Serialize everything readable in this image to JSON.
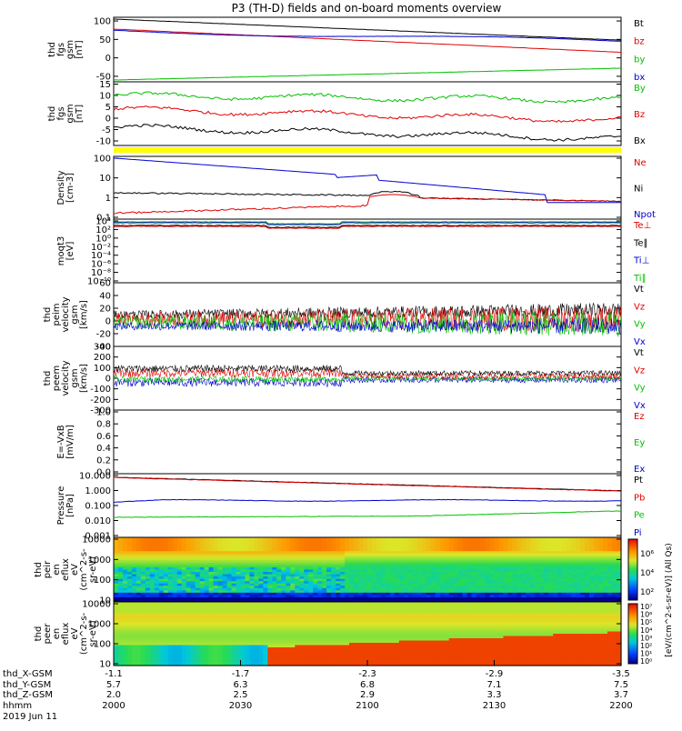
{
  "title": "P3 (TH-D) fields and on-board moments overview",
  "colors": {
    "black": "#000000",
    "red": "#e00000",
    "green": "#00c000",
    "blue": "#0000d0",
    "yellow": "#ffff00"
  },
  "chart_data": [
    {
      "type": "line",
      "ylabel": [
        "thd",
        "fgs",
        "gsm",
        "[nT]"
      ],
      "yticks": [
        100,
        50,
        0,
        -50
      ],
      "ylim": [
        -65,
        110
      ],
      "series": [
        {
          "name": "Bt",
          "color": "black",
          "start": 105,
          "end": 48
        },
        {
          "name": "bz",
          "color": "red",
          "start": 78,
          "end": 15
        },
        {
          "name": "by",
          "color": "green",
          "start": -60,
          "end": -28
        },
        {
          "name": "bx",
          "color": "blue",
          "start": 75,
          "end": 43
        }
      ]
    },
    {
      "type": "line",
      "ylabel": [
        "thd",
        "fgs",
        "gsm",
        "[nT]"
      ],
      "yticks": [
        15,
        10,
        5,
        0,
        -5,
        -10
      ],
      "ylim": [
        -12,
        16
      ],
      "series": [
        {
          "name": "By",
          "color": "green",
          "start": 10,
          "end": 8
        },
        {
          "name": "Bz",
          "color": "red",
          "start": 4,
          "end": -1
        },
        {
          "name": "Bx",
          "color": "black",
          "start": -4,
          "end": -9
        }
      ]
    },
    {
      "type": "line",
      "ylabel": [
        "Density",
        "[cm-3]"
      ],
      "yticks": [
        "100",
        "10",
        "1",
        "0.1"
      ],
      "log": true,
      "series": [
        {
          "name": "Ne",
          "color": "red"
        },
        {
          "name": "Ni",
          "color": "black"
        },
        {
          "name": "Npot",
          "color": "blue"
        }
      ]
    },
    {
      "type": "line",
      "ylabel": [
        "moqt3",
        "[eV]"
      ],
      "yticks": [
        "10⁴",
        "10²",
        "10⁰",
        "10⁻²",
        "10⁻⁴",
        "10⁻⁶",
        "10⁻⁸",
        "10⁻¹⁰"
      ],
      "log": true,
      "series": [
        {
          "name": "Te⊥",
          "color": "red"
        },
        {
          "name": "Te∥",
          "color": "black"
        },
        {
          "name": "Ti⊥",
          "color": "blue"
        },
        {
          "name": "Ti∥",
          "color": "green"
        }
      ]
    },
    {
      "type": "line",
      "ylabel": [
        "thd",
        "peim",
        "velocity",
        "gsm",
        "[km/s]"
      ],
      "yticks": [
        60,
        40,
        20,
        0,
        -20,
        -40
      ],
      "ylim": [
        -40,
        60
      ],
      "series": [
        {
          "name": "Vt",
          "color": "black"
        },
        {
          "name": "Vz",
          "color": "red"
        },
        {
          "name": "Vy",
          "color": "green"
        },
        {
          "name": "Vx",
          "color": "blue"
        }
      ]
    },
    {
      "type": "line",
      "ylabel": [
        "thd",
        "peem",
        "velocity",
        "gsm",
        "[km/s]"
      ],
      "yticks": [
        300,
        200,
        100,
        0,
        -100,
        -200,
        -300
      ],
      "ylim": [
        -300,
        300
      ],
      "series": [
        {
          "name": "Vt",
          "color": "black"
        },
        {
          "name": "Vz",
          "color": "red"
        },
        {
          "name": "Vy",
          "color": "green"
        },
        {
          "name": "Vx",
          "color": "blue"
        }
      ]
    },
    {
      "type": "line",
      "ylabel": [
        "E=-VxB",
        "[mV/m]"
      ],
      "yticks": [
        "1.0",
        "0.8",
        "0.6",
        "0.4",
        "0.2",
        "0.0"
      ],
      "ylim": [
        0,
        1
      ],
      "series": [
        {
          "name": "Ez",
          "color": "red"
        },
        {
          "name": "Ey",
          "color": "green"
        },
        {
          "name": "Ex",
          "color": "blue"
        }
      ]
    },
    {
      "type": "line",
      "ylabel": [
        "Pressure",
        "[nPa]"
      ],
      "yticks": [
        "10.000",
        "1.000",
        "0.100",
        "0.010",
        "0.001"
      ],
      "log": true,
      "series": [
        {
          "name": "Pt",
          "color": "black"
        },
        {
          "name": "Pb",
          "color": "red"
        },
        {
          "name": "Pe",
          "color": "green"
        },
        {
          "name": "Pi",
          "color": "blue"
        }
      ]
    },
    {
      "type": "heatmap",
      "ylabel": [
        "thd",
        "peir",
        "en",
        "eflux",
        "eV",
        "(cm^2-s-",
        "sr-eV)"
      ],
      "yticks": [
        "10000",
        "1000",
        "100",
        "10"
      ],
      "colorbar_ticks": [
        "10⁶",
        "10⁴",
        "10²"
      ]
    },
    {
      "type": "heatmap",
      "ylabel": [
        "thd",
        "peer",
        "en",
        "eflux",
        "eV",
        "(cm^2-s-",
        "sr-eV)"
      ],
      "yticks": [
        "10000",
        "1000",
        "100",
        "10"
      ],
      "colorbar_ticks": [
        "10⁷",
        "10⁶",
        "10⁵",
        "10⁴",
        "10³",
        "10²",
        "10¹",
        "10⁰"
      ]
    }
  ],
  "colorbar_label": "[eV/(cm^2-s-sr-eV)] (All Qs)",
  "x_axis": {
    "row_labels": [
      "thd_X-GSM",
      "thd_Y-GSM",
      "thd_Z-GSM",
      "hhmm",
      "2019 Jun 11"
    ],
    "ticks": [
      {
        "values": [
          "-1.1",
          "5.7",
          "2.0",
          "2000"
        ]
      },
      {
        "values": [
          "-1.7",
          "6.3",
          "2.5",
          "2030"
        ]
      },
      {
        "values": [
          "-2.3",
          "6.8",
          "2.9",
          "2100"
        ]
      },
      {
        "values": [
          "-2.9",
          "7.1",
          "3.3",
          "2130"
        ]
      },
      {
        "values": [
          "-3.5",
          "7.5",
          "3.7",
          "2200"
        ]
      }
    ]
  }
}
